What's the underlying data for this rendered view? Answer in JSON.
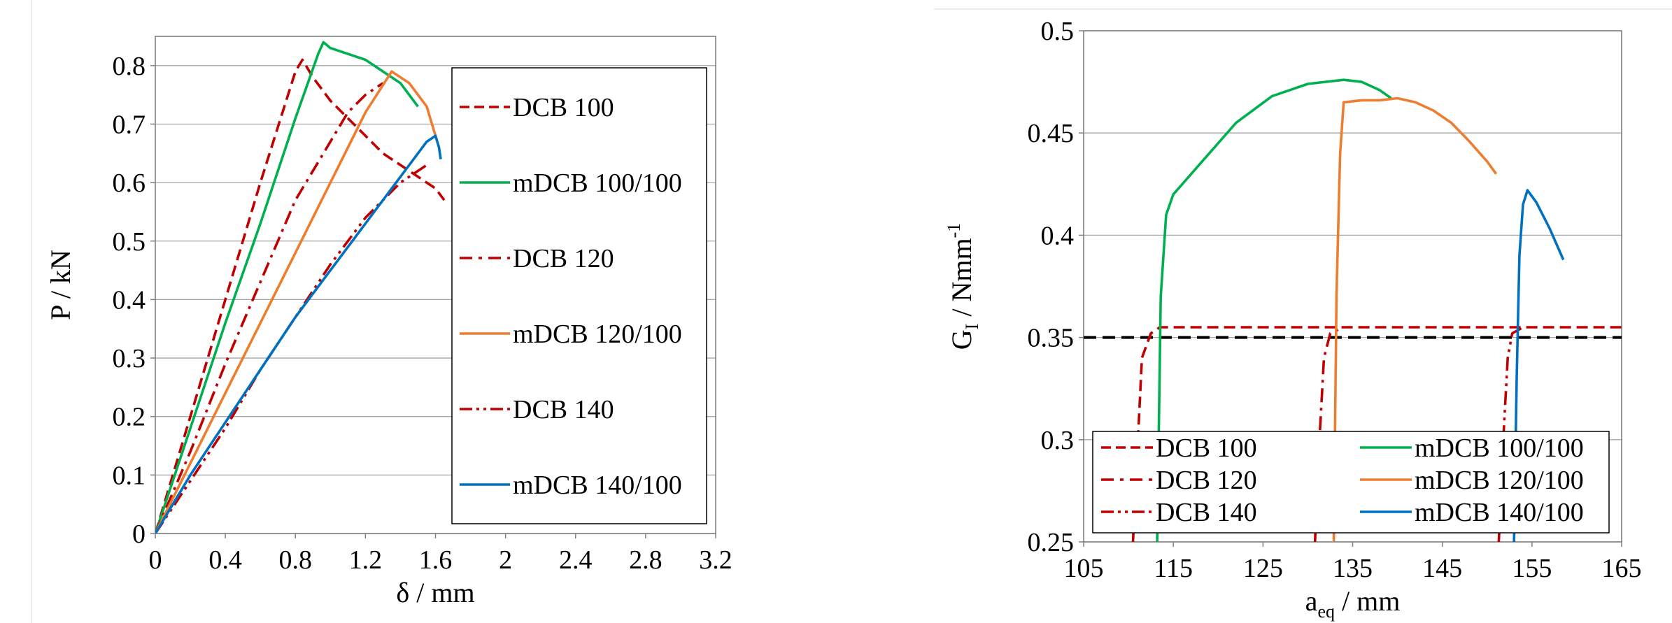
{
  "chart_data": [
    {
      "type": "line",
      "xlabel": "δ / mm",
      "ylabel": "P / kN",
      "xlim": [
        0,
        3.2
      ],
      "ylim": [
        0,
        0.85
      ],
      "xticks": [
        "0",
        "0.4",
        "0.8",
        "1.2",
        "1.6",
        "2",
        "2.4",
        "2.8",
        "3.2"
      ],
      "yticks": [
        "0",
        "0.1",
        "0.2",
        "0.3",
        "0.4",
        "0.5",
        "0.6",
        "0.7",
        "0.8"
      ],
      "xtick_values": [
        0,
        0.4,
        0.8,
        1.2,
        1.6,
        2,
        2.4,
        2.8,
        3.2
      ],
      "ytick_values": [
        0,
        0.1,
        0.2,
        0.3,
        0.4,
        0.5,
        0.6,
        0.7,
        0.8
      ],
      "grid": "horizontal",
      "legend_position": "right",
      "series": [
        {
          "name": "DCB 100",
          "color": "#c00000",
          "dash": "dashed",
          "x": [
            0,
            0.2,
            0.4,
            0.6,
            0.8,
            0.84,
            0.9,
            1.0,
            1.1,
            1.2,
            1.3,
            1.4,
            1.5,
            1.6,
            1.65
          ],
          "y": [
            0,
            0.2,
            0.4,
            0.6,
            0.79,
            0.81,
            0.78,
            0.74,
            0.71,
            0.68,
            0.65,
            0.63,
            0.61,
            0.59,
            0.57
          ]
        },
        {
          "name": "mDCB 100/100",
          "color": "#00b050",
          "dash": "solid",
          "x": [
            0,
            0.2,
            0.4,
            0.6,
            0.8,
            0.93,
            0.96,
            1.0,
            1.1,
            1.2,
            1.3,
            1.4,
            1.5
          ],
          "y": [
            0,
            0.18,
            0.36,
            0.53,
            0.71,
            0.82,
            0.84,
            0.83,
            0.82,
            0.81,
            0.79,
            0.77,
            0.73
          ]
        },
        {
          "name": "DCB 120",
          "color": "#c00000",
          "dash": "dashdot",
          "x": [
            0,
            0.2,
            0.4,
            0.6,
            0.8,
            1.0,
            1.1,
            1.2,
            1.3
          ],
          "y": [
            0,
            0.14,
            0.29,
            0.43,
            0.57,
            0.67,
            0.72,
            0.75,
            0.77
          ]
        },
        {
          "name": "mDCB 120/100",
          "color": "#ed7d31",
          "dash": "solid",
          "x": [
            0,
            0.2,
            0.4,
            0.6,
            0.8,
            1.0,
            1.2,
            1.35,
            1.45,
            1.55,
            1.6
          ],
          "y": [
            0,
            0.12,
            0.24,
            0.36,
            0.48,
            0.6,
            0.72,
            0.79,
            0.77,
            0.73,
            0.68
          ]
        },
        {
          "name": "DCB 140",
          "color": "#c00000",
          "dash": "dashdotdot",
          "x": [
            0,
            0.2,
            0.4,
            0.6,
            0.8,
            1.0,
            1.2,
            1.4,
            1.55
          ],
          "y": [
            0,
            0.09,
            0.18,
            0.28,
            0.37,
            0.46,
            0.54,
            0.6,
            0.63
          ]
        },
        {
          "name": "mDCB 140/100",
          "color": "#0070c0",
          "dash": "solid",
          "x": [
            0,
            0.2,
            0.4,
            0.6,
            0.8,
            1.0,
            1.2,
            1.4,
            1.55,
            1.6,
            1.62,
            1.63
          ],
          "y": [
            0,
            0.1,
            0.19,
            0.28,
            0.37,
            0.45,
            0.53,
            0.61,
            0.67,
            0.68,
            0.66,
            0.64
          ]
        }
      ]
    },
    {
      "type": "line",
      "xlabel": "a",
      "xlabel_sub": "eq",
      "xlabel_rest": " / mm",
      "ylabel": "G",
      "ylabel_sub": "I",
      "ylabel_rest": " / Nmm",
      "ylabel_sup": "-1",
      "xlim": [
        105,
        165
      ],
      "ylim": [
        0.25,
        0.5
      ],
      "xticks": [
        "105",
        "115",
        "125",
        "135",
        "145",
        "155",
        "165"
      ],
      "yticks": [
        "0.25",
        "0.3",
        "0.35",
        "0.4",
        "0.45",
        "0.5"
      ],
      "xtick_values": [
        105,
        115,
        125,
        135,
        145,
        155,
        165
      ],
      "ytick_values": [
        0.25,
        0.3,
        0.35,
        0.4,
        0.45,
        0.5
      ],
      "grid": "horizontal",
      "legend_position": "bottom",
      "reference_line": {
        "y": 0.35,
        "color": "#000000",
        "dash": "dashed"
      },
      "series": [
        {
          "name": "DCB 100",
          "color": "#c00000",
          "dash": "dashed",
          "x": [
            110.5,
            111.5,
            112.5,
            113.5,
            120,
            130,
            140,
            150,
            160,
            165
          ],
          "y": [
            0.25,
            0.34,
            0.352,
            0.355,
            0.355,
            0.355,
            0.355,
            0.355,
            0.355,
            0.355
          ]
        },
        {
          "name": "mDCB 100/100",
          "color": "#00b050",
          "dash": "solid",
          "x": [
            113.2,
            113.6,
            114.2,
            115,
            118,
            122,
            126,
            130,
            134,
            136,
            138,
            139.3
          ],
          "y": [
            0.25,
            0.37,
            0.41,
            0.42,
            0.435,
            0.455,
            0.468,
            0.474,
            0.476,
            0.475,
            0.471,
            0.467
          ]
        },
        {
          "name": "DCB 120",
          "color": "#c00000",
          "dash": "dashdot",
          "x": [
            130.8,
            131.3,
            131.8,
            132.5,
            134
          ],
          "y": [
            0.25,
            0.3,
            0.34,
            0.352,
            0.355
          ]
        },
        {
          "name": "mDCB 120/100",
          "color": "#ed7d31",
          "dash": "solid",
          "x": [
            132.9,
            133.2,
            133.6,
            134,
            136,
            138,
            140,
            142,
            144,
            146,
            148,
            150,
            151
          ],
          "y": [
            0.25,
            0.37,
            0.44,
            0.465,
            0.466,
            0.466,
            0.467,
            0.465,
            0.461,
            0.455,
            0.446,
            0.436,
            0.43
          ]
        },
        {
          "name": "DCB 140",
          "color": "#c00000",
          "dash": "dashdotdot",
          "x": [
            151.3,
            151.8,
            152.3,
            152.8,
            154
          ],
          "y": [
            0.25,
            0.3,
            0.34,
            0.352,
            0.355
          ]
        },
        {
          "name": "mDCB 140/100",
          "color": "#0070c0",
          "dash": "solid",
          "x": [
            153.0,
            153.3,
            153.6,
            154,
            154.5,
            155.5,
            157,
            158.5
          ],
          "y": [
            0.25,
            0.33,
            0.39,
            0.415,
            0.422,
            0.416,
            0.403,
            0.388
          ]
        }
      ]
    }
  ]
}
